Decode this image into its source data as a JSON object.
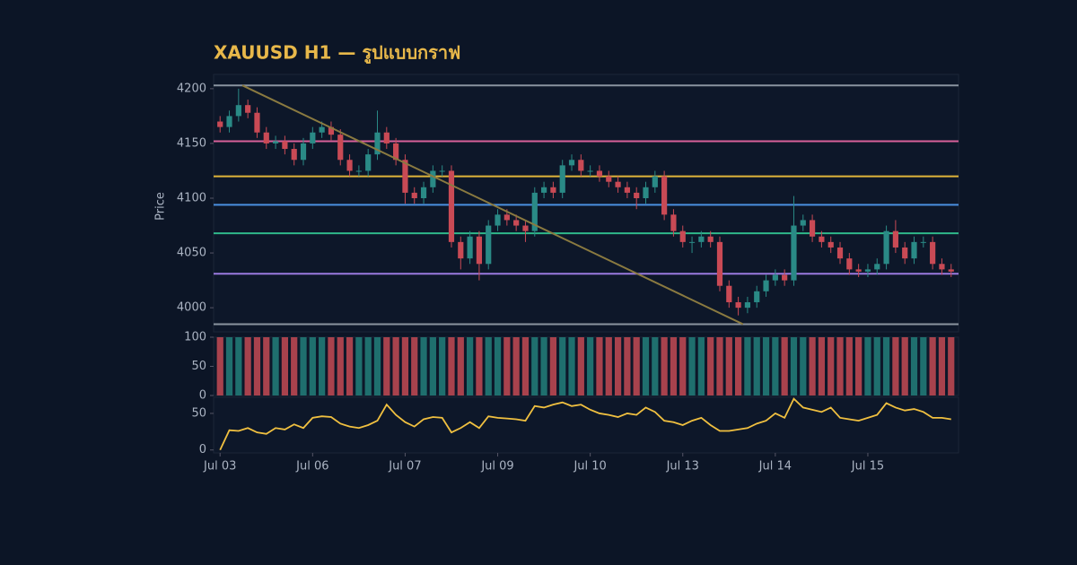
{
  "chart_data": [
    {
      "type": "candlestick",
      "title": "XAUUSD H1 — รูปแบบกราฟ",
      "y_label": "Price",
      "up_color": "#2a8a86",
      "down_color": "#c94a55",
      "xlim": [
        -0.7,
        79.8
      ],
      "ylim": [
        3978,
        4213
      ],
      "yticks": [
        4000,
        4050,
        4100,
        4150,
        4200
      ],
      "open": [
        4170,
        4165,
        4175,
        4185,
        4178,
        4160,
        4150,
        4152,
        4145,
        4135,
        4150,
        4160,
        4165,
        4158,
        4135,
        4125,
        4125,
        4140,
        4160,
        4150,
        4135,
        4105,
        4100,
        4110,
        4125,
        4125,
        4060,
        4045,
        4065,
        4040,
        4075,
        4085,
        4080,
        4075,
        4070,
        4105,
        4110,
        4105,
        4130,
        4135,
        4125,
        4125,
        4120,
        4115,
        4110,
        4105,
        4100,
        4110,
        4120,
        4085,
        4070,
        4060,
        4060,
        4065,
        4060,
        4020,
        4005,
        4000,
        4005,
        4015,
        4025,
        4030,
        4025,
        4075,
        4080,
        4065,
        4060,
        4055,
        4045,
        4035,
        4033,
        4035,
        4040,
        4070,
        4055,
        4045,
        4060,
        4060,
        4040,
        4035
      ],
      "high": [
        4175,
        4180,
        4200,
        4190,
        4183,
        4165,
        4157,
        4157,
        4150,
        4155,
        4165,
        4170,
        4170,
        4163,
        4140,
        4130,
        4145,
        4180,
        4165,
        4155,
        4140,
        4110,
        4115,
        4130,
        4130,
        4130,
        4065,
        4070,
        4070,
        4080,
        4090,
        4090,
        4085,
        4080,
        4110,
        4115,
        4115,
        4135,
        4140,
        4140,
        4130,
        4130,
        4125,
        4120,
        4115,
        4110,
        4115,
        4125,
        4125,
        4090,
        4075,
        4065,
        4070,
        4070,
        4065,
        4025,
        4010,
        4010,
        4020,
        4030,
        4035,
        4035,
        4102,
        4085,
        4085,
        4070,
        4065,
        4060,
        4050,
        4040,
        4040,
        4045,
        4075,
        4080,
        4060,
        4065,
        4065,
        4065,
        4045,
        4040
      ],
      "low": [
        4160,
        4160,
        4170,
        4173,
        4155,
        4145,
        4145,
        4140,
        4130,
        4130,
        4145,
        4155,
        4153,
        4130,
        4120,
        4120,
        4120,
        4135,
        4145,
        4130,
        4095,
        4095,
        4095,
        4105,
        4120,
        4055,
        4035,
        4040,
        4025,
        4035,
        4070,
        4075,
        4070,
        4060,
        4065,
        4100,
        4100,
        4100,
        4125,
        4120,
        4120,
        4115,
        4110,
        4105,
        4100,
        4090,
        4095,
        4105,
        4080,
        4065,
        4055,
        4050,
        4055,
        4055,
        4015,
        4000,
        3993,
        3995,
        4000,
        4010,
        4020,
        4020,
        4020,
        4070,
        4060,
        4055,
        4050,
        4040,
        4030,
        4028,
        4028,
        4030,
        4035,
        4050,
        4040,
        4040,
        4055,
        4035,
        4030,
        4028
      ],
      "close": [
        4165,
        4175,
        4185,
        4178,
        4160,
        4150,
        4152,
        4145,
        4135,
        4150,
        4160,
        4165,
        4158,
        4135,
        4125,
        4125,
        4140,
        4160,
        4150,
        4135,
        4105,
        4100,
        4110,
        4125,
        4125,
        4060,
        4045,
        4065,
        4040,
        4075,
        4085,
        4080,
        4075,
        4070,
        4105,
        4110,
        4105,
        4130,
        4135,
        4125,
        4125,
        4120,
        4115,
        4110,
        4105,
        4100,
        4110,
        4120,
        4085,
        4070,
        4060,
        4060,
        4065,
        4060,
        4020,
        4005,
        4000,
        4005,
        4015,
        4025,
        4030,
        4025,
        4075,
        4080,
        4065,
        4060,
        4055,
        4045,
        4035,
        4033,
        4035,
        4040,
        4070,
        4055,
        4045,
        4060,
        4060,
        4040,
        4035,
        4033
      ],
      "levels": [
        {
          "value": 4203,
          "color": "#8a94a0"
        },
        {
          "value": 4152,
          "color": "#d8609a"
        },
        {
          "value": 4120,
          "color": "#e0b43a"
        },
        {
          "value": 4094,
          "color": "#4a8fe0"
        },
        {
          "value": 4068,
          "color": "#2fb98a"
        },
        {
          "value": 4031,
          "color": "#9a7ae0"
        },
        {
          "value": 3985,
          "color": "#8a94a0"
        }
      ],
      "trendline": {
        "x": [
          2.4,
          56.5
        ],
        "y": [
          4203,
          3985
        ],
        "color": "#8a7a40"
      }
    },
    {
      "type": "bar",
      "up_color": "#1f6f6e",
      "down_color": "#a8424d",
      "xlim": [
        -0.7,
        79.8
      ],
      "ylim": [
        0,
        100
      ],
      "yticks": [
        0,
        50,
        100
      ],
      "values": [
        100,
        100,
        100,
        100,
        100,
        100,
        100,
        100,
        100,
        100,
        100,
        100,
        100,
        100,
        100,
        100,
        100,
        100,
        100,
        100,
        100,
        100,
        100,
        100,
        100,
        100,
        100,
        100,
        100,
        100,
        100,
        100,
        100,
        100,
        100,
        100,
        100,
        100,
        100,
        100,
        100,
        100,
        100,
        100,
        100,
        100,
        100,
        100,
        100,
        100,
        100,
        100,
        100,
        100,
        100,
        100,
        100,
        100,
        100,
        100,
        100,
        100,
        100,
        100,
        100,
        100,
        100,
        100,
        100,
        100,
        100,
        100,
        100,
        100,
        100,
        100,
        100,
        100,
        100,
        100
      ]
    },
    {
      "type": "line",
      "color": "#f0c040",
      "xlim": [
        -0.7,
        79.8
      ],
      "ylim": [
        -4,
        72
      ],
      "yticks": [
        0,
        50
      ],
      "xticks": [
        {
          "value": 0,
          "label": "Jul 03"
        },
        {
          "value": 10,
          "label": "Jul 06"
        },
        {
          "value": 20,
          "label": "Jul 07"
        },
        {
          "value": 30,
          "label": "Jul 09"
        },
        {
          "value": 40,
          "label": "Jul 10"
        },
        {
          "value": 50,
          "label": "Jul 13"
        },
        {
          "value": 60,
          "label": "Jul 14"
        },
        {
          "value": 70,
          "label": "Jul 15"
        }
      ],
      "values": [
        0,
        27,
        26,
        30,
        24,
        22,
        30,
        28,
        35,
        30,
        44,
        46,
        45,
        36,
        32,
        30,
        34,
        40,
        62,
        48,
        38,
        32,
        42,
        45,
        44,
        24,
        30,
        38,
        30,
        46,
        44,
        43,
        42,
        40,
        60,
        58,
        62,
        65,
        60,
        62,
        55,
        50,
        48,
        45,
        50,
        48,
        58,
        52,
        40,
        38,
        34,
        40,
        44,
        34,
        26,
        26,
        28,
        30,
        36,
        40,
        50,
        44,
        70,
        58,
        55,
        52,
        58,
        44,
        42,
        40,
        44,
        48,
        64,
        58,
        54,
        56,
        52,
        44,
        44,
        42
      ]
    }
  ]
}
